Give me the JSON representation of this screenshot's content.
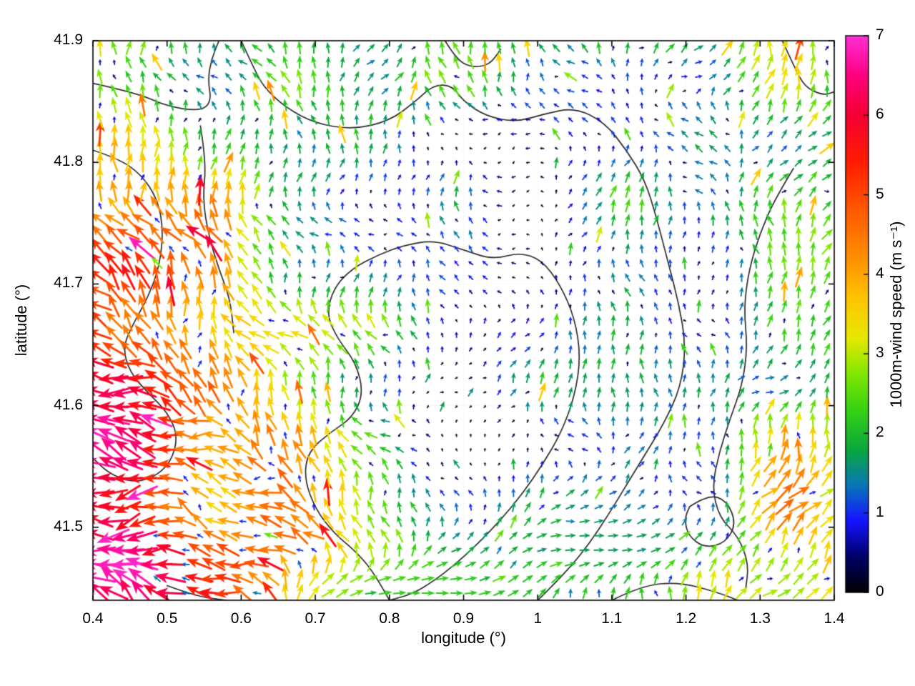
{
  "chart_data": {
    "type": "scatter",
    "subtype": "quiver-vector-field-map",
    "title": "",
    "xlabel": "longitude (°)",
    "ylabel": "latitude (°)",
    "colorbar_label": "1000m-wind speed (m s⁻¹)",
    "x_range": [
      0.4,
      1.4
    ],
    "y_range": [
      41.44,
      41.9
    ],
    "grid_on": false,
    "legend": "colorbar-right",
    "x_ticks": [
      {
        "v": 0.4,
        "label": "0.4"
      },
      {
        "v": 0.5,
        "label": "0.5"
      },
      {
        "v": 0.6,
        "label": "0.6"
      },
      {
        "v": 0.7,
        "label": "0.7"
      },
      {
        "v": 0.8,
        "label": "0.8"
      },
      {
        "v": 0.9,
        "label": "0.9"
      },
      {
        "v": 1.0,
        "label": "1"
      },
      {
        "v": 1.1,
        "label": "1.1"
      },
      {
        "v": 1.2,
        "label": "1.2"
      },
      {
        "v": 1.3,
        "label": "1.3"
      },
      {
        "v": 1.4,
        "label": "1.4"
      }
    ],
    "y_ticks": [
      {
        "v": 41.5,
        "label": "41.5"
      },
      {
        "v": 41.6,
        "label": "41.6"
      },
      {
        "v": 41.7,
        "label": "41.7"
      },
      {
        "v": 41.8,
        "label": "41.8"
      },
      {
        "v": 41.9,
        "label": "41.9"
      }
    ],
    "colorbar_range": [
      0,
      7
    ],
    "colorbar_ticks": [
      {
        "v": 0,
        "label": "0"
      },
      {
        "v": 1,
        "label": "1"
      },
      {
        "v": 2,
        "label": "2"
      },
      {
        "v": 3,
        "label": "3"
      },
      {
        "v": 4,
        "label": "4"
      },
      {
        "v": 5,
        "label": "5"
      },
      {
        "v": 6,
        "label": "6"
      },
      {
        "v": 7,
        "label": "7"
      }
    ],
    "colormap_stops": [
      [
        0.0,
        "#000000"
      ],
      [
        0.45,
        "#00006a"
      ],
      [
        0.9,
        "#1414ff"
      ],
      [
        1.35,
        "#0877b8"
      ],
      [
        1.8,
        "#0aa83c"
      ],
      [
        2.3,
        "#37d313"
      ],
      [
        2.8,
        "#8ce800"
      ],
      [
        3.2,
        "#e8e800"
      ],
      [
        3.7,
        "#ffc400"
      ],
      [
        4.2,
        "#ff9000"
      ],
      [
        4.8,
        "#ff5a00"
      ],
      [
        5.4,
        "#ff1e00"
      ],
      [
        6.0,
        "#f40032"
      ],
      [
        6.5,
        "#ff0080"
      ],
      [
        7.0,
        "#ff2ed6"
      ]
    ],
    "arrow_grid": {
      "cols": 52,
      "rows": 39
    },
    "wind_field_model": {
      "base_speed": 2.3,
      "base_direction_deg": 90,
      "bumps": [
        {
          "lon": 0.38,
          "lat": 41.42,
          "sx": 0.42,
          "sy": 0.26,
          "amp": 3.0,
          "dir_bias": 70
        },
        {
          "lon": 0.52,
          "lat": 41.6,
          "sx": 0.24,
          "sy": 0.2,
          "amp": 1.0,
          "dir_bias": 15
        },
        {
          "lon": 0.4,
          "lat": 41.74,
          "sx": 0.1,
          "sy": 0.5,
          "amp": 0.9,
          "dir_bias": 10
        },
        {
          "lon": 0.93,
          "lat": 41.61,
          "sx": 0.3,
          "sy": 0.17,
          "amp": -1.7,
          "dir_bias": 0
        },
        {
          "lon": 0.88,
          "lat": 41.47,
          "sx": 0.22,
          "sy": 0.1,
          "amp": -0.9,
          "dir_bias": 0
        },
        {
          "lon": 0.88,
          "lat": 41.79,
          "sx": 0.25,
          "sy": 0.1,
          "amp": -0.8,
          "dir_bias": 0
        },
        {
          "lon": 1.37,
          "lat": 41.5,
          "sx": 0.12,
          "sy": 0.14,
          "amp": 1.1,
          "dir_bias": -35
        }
      ],
      "jets": [
        {
          "lon": 1.08,
          "lat": 41.487,
          "sx": 0.16,
          "sy": 0.035,
          "dir": 0,
          "speed": 1.7
        },
        {
          "lon": 0.86,
          "lat": 41.447,
          "sx": 0.2,
          "sy": 0.03,
          "dir": 0,
          "speed": 2.2
        }
      ],
      "noise": {
        "speed_amp": 1.4,
        "dir_amp_base": 40,
        "dir_amp_low_speed": 140,
        "scale": 9
      }
    },
    "coast_contours": [
      [
        [
          0.4,
          41.865
        ],
        [
          0.46,
          41.857
        ],
        [
          0.5,
          41.846
        ],
        [
          0.545,
          41.842
        ],
        [
          0.56,
          41.85
        ],
        [
          0.555,
          41.868
        ],
        [
          0.56,
          41.885
        ],
        [
          0.57,
          41.9
        ]
      ],
      [
        [
          0.6,
          41.9
        ],
        [
          0.615,
          41.88
        ],
        [
          0.63,
          41.862
        ],
        [
          0.66,
          41.845
        ],
        [
          0.7,
          41.832
        ],
        [
          0.75,
          41.827
        ],
        [
          0.8,
          41.834
        ],
        [
          0.835,
          41.85
        ],
        [
          0.86,
          41.864
        ],
        [
          0.885,
          41.863
        ],
        [
          0.9,
          41.85
        ],
        [
          0.93,
          41.838
        ],
        [
          0.97,
          41.833
        ],
        [
          1.01,
          41.84
        ],
        [
          1.05,
          41.845
        ],
        [
          1.09,
          41.833
        ],
        [
          1.12,
          41.81
        ],
        [
          1.145,
          41.785
        ],
        [
          1.16,
          41.755
        ],
        [
          1.175,
          41.72
        ],
        [
          1.19,
          41.685
        ],
        [
          1.2,
          41.65
        ],
        [
          1.193,
          41.615
        ],
        [
          1.17,
          41.585
        ],
        [
          1.145,
          41.56
        ],
        [
          1.12,
          41.535
        ],
        [
          1.095,
          41.51
        ],
        [
          1.07,
          41.487
        ],
        [
          1.045,
          41.468
        ],
        [
          1.02,
          41.452
        ],
        [
          1.0,
          41.44
        ]
      ],
      [
        [
          0.8,
          41.44
        ],
        [
          0.78,
          41.462
        ],
        [
          0.755,
          41.48
        ],
        [
          0.725,
          41.495
        ],
        [
          0.7,
          41.515
        ],
        [
          0.685,
          41.54
        ],
        [
          0.69,
          41.562
        ],
        [
          0.72,
          41.578
        ],
        [
          0.75,
          41.59
        ],
        [
          0.765,
          41.61
        ],
        [
          0.755,
          41.635
        ],
        [
          0.73,
          41.655
        ],
        [
          0.715,
          41.675
        ],
        [
          0.725,
          41.697
        ],
        [
          0.75,
          41.713
        ],
        [
          0.785,
          41.724
        ],
        [
          0.82,
          41.732
        ],
        [
          0.86,
          41.736
        ],
        [
          0.9,
          41.728
        ],
        [
          0.94,
          41.72
        ],
        [
          0.975,
          41.726
        ],
        [
          1.005,
          41.72
        ],
        [
          1.03,
          41.7
        ],
        [
          1.05,
          41.672
        ],
        [
          1.058,
          41.64
        ],
        [
          1.05,
          41.608
        ],
        [
          1.032,
          41.578
        ],
        [
          1.007,
          41.552
        ],
        [
          0.98,
          41.528
        ],
        [
          0.95,
          41.506
        ],
        [
          0.92,
          41.487
        ],
        [
          0.89,
          41.47
        ],
        [
          0.858,
          41.455
        ],
        [
          0.83,
          41.445
        ],
        [
          0.8,
          41.44
        ]
      ],
      [
        [
          0.4,
          41.81
        ],
        [
          0.435,
          41.803
        ],
        [
          0.465,
          41.79
        ],
        [
          0.487,
          41.77
        ],
        [
          0.495,
          41.745
        ],
        [
          0.49,
          41.715
        ],
        [
          0.475,
          41.69
        ],
        [
          0.455,
          41.668
        ],
        [
          0.44,
          41.648
        ],
        [
          0.45,
          41.627
        ],
        [
          0.475,
          41.61
        ],
        [
          0.5,
          41.595
        ],
        [
          0.515,
          41.575
        ],
        [
          0.505,
          41.553
        ],
        [
          0.48,
          41.54
        ],
        [
          0.45,
          41.537
        ],
        [
          0.42,
          41.545
        ],
        [
          0.4,
          41.557
        ]
      ],
      [
        [
          0.545,
          41.83
        ],
        [
          0.553,
          41.8
        ],
        [
          0.548,
          41.77
        ],
        [
          0.556,
          41.74
        ],
        [
          0.57,
          41.712
        ],
        [
          0.585,
          41.688
        ],
        [
          0.59,
          41.66
        ]
      ],
      [
        [
          1.345,
          41.795
        ],
        [
          1.32,
          41.77
        ],
        [
          1.3,
          41.742
        ],
        [
          1.285,
          41.712
        ],
        [
          1.278,
          41.68
        ],
        [
          1.283,
          41.648
        ],
        [
          1.276,
          41.617
        ],
        [
          1.26,
          41.59
        ],
        [
          1.245,
          41.562
        ],
        [
          1.235,
          41.533
        ],
        [
          1.245,
          41.508
        ],
        [
          1.27,
          41.493
        ],
        [
          1.285,
          41.47
        ],
        [
          1.28,
          41.447
        ]
      ],
      [
        [
          1.205,
          41.517
        ],
        [
          1.23,
          41.527
        ],
        [
          1.255,
          41.522
        ],
        [
          1.268,
          41.503
        ],
        [
          1.253,
          41.487
        ],
        [
          1.225,
          41.483
        ],
        [
          1.203,
          41.493
        ],
        [
          1.198,
          41.507
        ],
        [
          1.205,
          41.517
        ]
      ],
      [
        [
          0.5,
          41.452
        ],
        [
          0.54,
          41.443
        ],
        [
          0.58,
          41.44
        ]
      ],
      [
        [
          1.1,
          41.44
        ],
        [
          1.14,
          41.452
        ],
        [
          1.19,
          41.455
        ],
        [
          1.24,
          41.447
        ],
        [
          1.27,
          41.44
        ]
      ],
      [
        [
          1.33,
          41.9
        ],
        [
          1.345,
          41.88
        ],
        [
          1.36,
          41.862
        ],
        [
          1.385,
          41.855
        ],
        [
          1.4,
          41.858
        ]
      ],
      [
        [
          0.875,
          41.9
        ],
        [
          0.89,
          41.885
        ],
        [
          0.91,
          41.878
        ],
        [
          0.935,
          41.88
        ],
        [
          0.95,
          41.893
        ]
      ]
    ]
  }
}
